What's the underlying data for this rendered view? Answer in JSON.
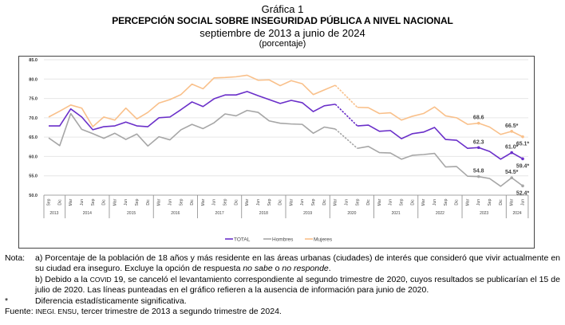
{
  "header": {
    "figure_label": "Gráfica 1",
    "title": "PERCEPCIÓN SOCIAL SOBRE INSEGURIDAD PÚBLICA A NIVEL NACIONAL",
    "subtitle": "septiembre de 2013 a junio de 2024",
    "unit": "(porcentaje)"
  },
  "chart_data": {
    "type": "line",
    "title": "PERCEPCIÓN SOCIAL SOBRE INSEGURIDAD PÚBLICA A NIVEL NACIONAL",
    "subtitle": "septiembre de 2013 a junio de 2024",
    "xlabel": "",
    "ylabel": "porcentaje",
    "ylim": [
      50,
      85
    ],
    "yticks": [
      "50.0",
      "55.0",
      "60.0",
      "65.0",
      "70.0",
      "75.0",
      "80.0",
      "85.0"
    ],
    "grid": true,
    "legend": "bottom-center",
    "years": [
      {
        "label": "2013",
        "quarters": [
          "Sep",
          "Dic"
        ]
      },
      {
        "label": "2014",
        "quarters": [
          "Mar",
          "Jun",
          "Sep",
          "Dic"
        ]
      },
      {
        "label": "2015",
        "quarters": [
          "Mar",
          "Jun",
          "Sep",
          "Dic"
        ]
      },
      {
        "label": "2016",
        "quarters": [
          "Mar",
          "Jun",
          "Sep",
          "Dic"
        ]
      },
      {
        "label": "2017",
        "quarters": [
          "Mar",
          "Jun",
          "Sep",
          "Dic"
        ]
      },
      {
        "label": "2018",
        "quarters": [
          "Mar",
          "Jun",
          "Sep",
          "Dic"
        ]
      },
      {
        "label": "2019",
        "quarters": [
          "Mar",
          "Jun",
          "Sep",
          "Dic"
        ]
      },
      {
        "label": "2020",
        "quarters": [
          "Mar",
          "Jun",
          "Sep",
          "Dic"
        ]
      },
      {
        "label": "2021",
        "quarters": [
          "Mar",
          "Jun",
          "Sep",
          "Dic"
        ]
      },
      {
        "label": "2022",
        "quarters": [
          "Mar",
          "Jun",
          "Sep",
          "Dic"
        ]
      },
      {
        "label": "2023",
        "quarters": [
          "Mar",
          "Jun",
          "Sep",
          "Dic"
        ]
      },
      {
        "label": "2024",
        "quarters": [
          "Mar",
          "Jun"
        ]
      }
    ],
    "missing_index": 27,
    "missing_note": "Jun 2020 sin dato (línea punteada)",
    "series": [
      {
        "name": "TOTAL",
        "color": "#6a2fc9",
        "values": [
          67.9,
          67.9,
          72.3,
          70.2,
          66.9,
          67.7,
          67.9,
          68.9,
          67.9,
          67.7,
          70.0,
          70.2,
          72.1,
          74.1,
          72.9,
          74.9,
          75.9,
          75.9,
          76.8,
          75.7,
          74.7,
          73.7,
          74.5,
          73.9,
          71.6,
          73.1,
          73.5,
          null,
          67.9,
          68.1,
          66.5,
          66.7,
          64.6,
          65.9,
          66.3,
          67.5,
          64.4,
          64.2,
          62.1,
          62.3,
          61.3,
          59.3,
          61.0,
          59.4
        ],
        "labels": [
          {
            "index": 39,
            "text": "62.3"
          },
          {
            "index": 42,
            "text": "61.0*"
          },
          {
            "index": 43,
            "text": "59.4*"
          }
        ]
      },
      {
        "name": "Hombres",
        "color": "#a6a6a6",
        "values": [
          64.8,
          62.8,
          71.1,
          67.0,
          65.9,
          64.7,
          66.0,
          64.4,
          65.8,
          62.7,
          65.1,
          64.3,
          66.9,
          68.3,
          67.2,
          68.7,
          71.0,
          70.5,
          71.9,
          71.4,
          69.2,
          68.6,
          68.4,
          68.3,
          66.0,
          67.6,
          67.1,
          null,
          62.1,
          62.6,
          61.0,
          60.9,
          59.3,
          60.3,
          60.5,
          60.8,
          57.3,
          57.4,
          54.9,
          54.8,
          54.3,
          52.3,
          54.5,
          52.4
        ],
        "labels": [
          {
            "index": 39,
            "text": "54.8"
          },
          {
            "index": 42,
            "text": "54.5*"
          },
          {
            "index": 43,
            "text": "52.4*"
          }
        ]
      },
      {
        "name": "Mujeres",
        "color": "#f9c08a",
        "values": [
          70.2,
          71.7,
          73.3,
          72.5,
          67.7,
          70.2,
          69.4,
          72.5,
          69.7,
          71.4,
          73.8,
          74.7,
          76.0,
          78.7,
          77.5,
          80.3,
          80.4,
          80.6,
          81.0,
          79.7,
          79.8,
          78.3,
          79.6,
          78.8,
          76.0,
          77.2,
          78.4,
          null,
          72.7,
          72.6,
          71.1,
          71.3,
          69.4,
          70.4,
          71.1,
          72.8,
          70.5,
          70.0,
          68.3,
          68.6,
          67.6,
          65.7,
          66.5,
          65.1
        ],
        "labels": [
          {
            "index": 39,
            "text": "68.6"
          },
          {
            "index": 42,
            "text": "66.5*"
          },
          {
            "index": 43,
            "text": "65.1*"
          }
        ]
      }
    ]
  },
  "legend": {
    "items": [
      {
        "label": "TOTAL",
        "color": "#6a2fc9"
      },
      {
        "label": "Hombres",
        "color": "#a6a6a6"
      },
      {
        "label": "Mujeres",
        "color": "#f9c08a"
      }
    ]
  },
  "notes": {
    "nota_label": "Nota:",
    "a_1": "a) Porcentaje de la población de 18 años y más residente en las áreas urbanas (ciudades) de interés que consideró que vivir actualmente en su ciudad era inseguro. Excluye la opción de respuesta ",
    "a_em1": "no sabe",
    "a_2": " o ",
    "a_em2": "no responde",
    "a_3": ".",
    "b_1": "b) Debido a la ",
    "b_sc": "COVID",
    "b_2": " 19, se canceló el levantamiento correspondiente al segundo trimestre de 2020, cuyos resultados se publicarían el 15 de julio de 2020. Las líneas punteadas en el gráfico refieren a la ausencia de información para junio de 2020.",
    "star_label": "*",
    "star_text": "Diferencia estadísticamente significativa.",
    "source_label": "Fuente:",
    "source_sc": "INEGI. ENSU",
    "source_text": ", tercer trimestre de 2013 a segundo trimestre de 2024."
  }
}
